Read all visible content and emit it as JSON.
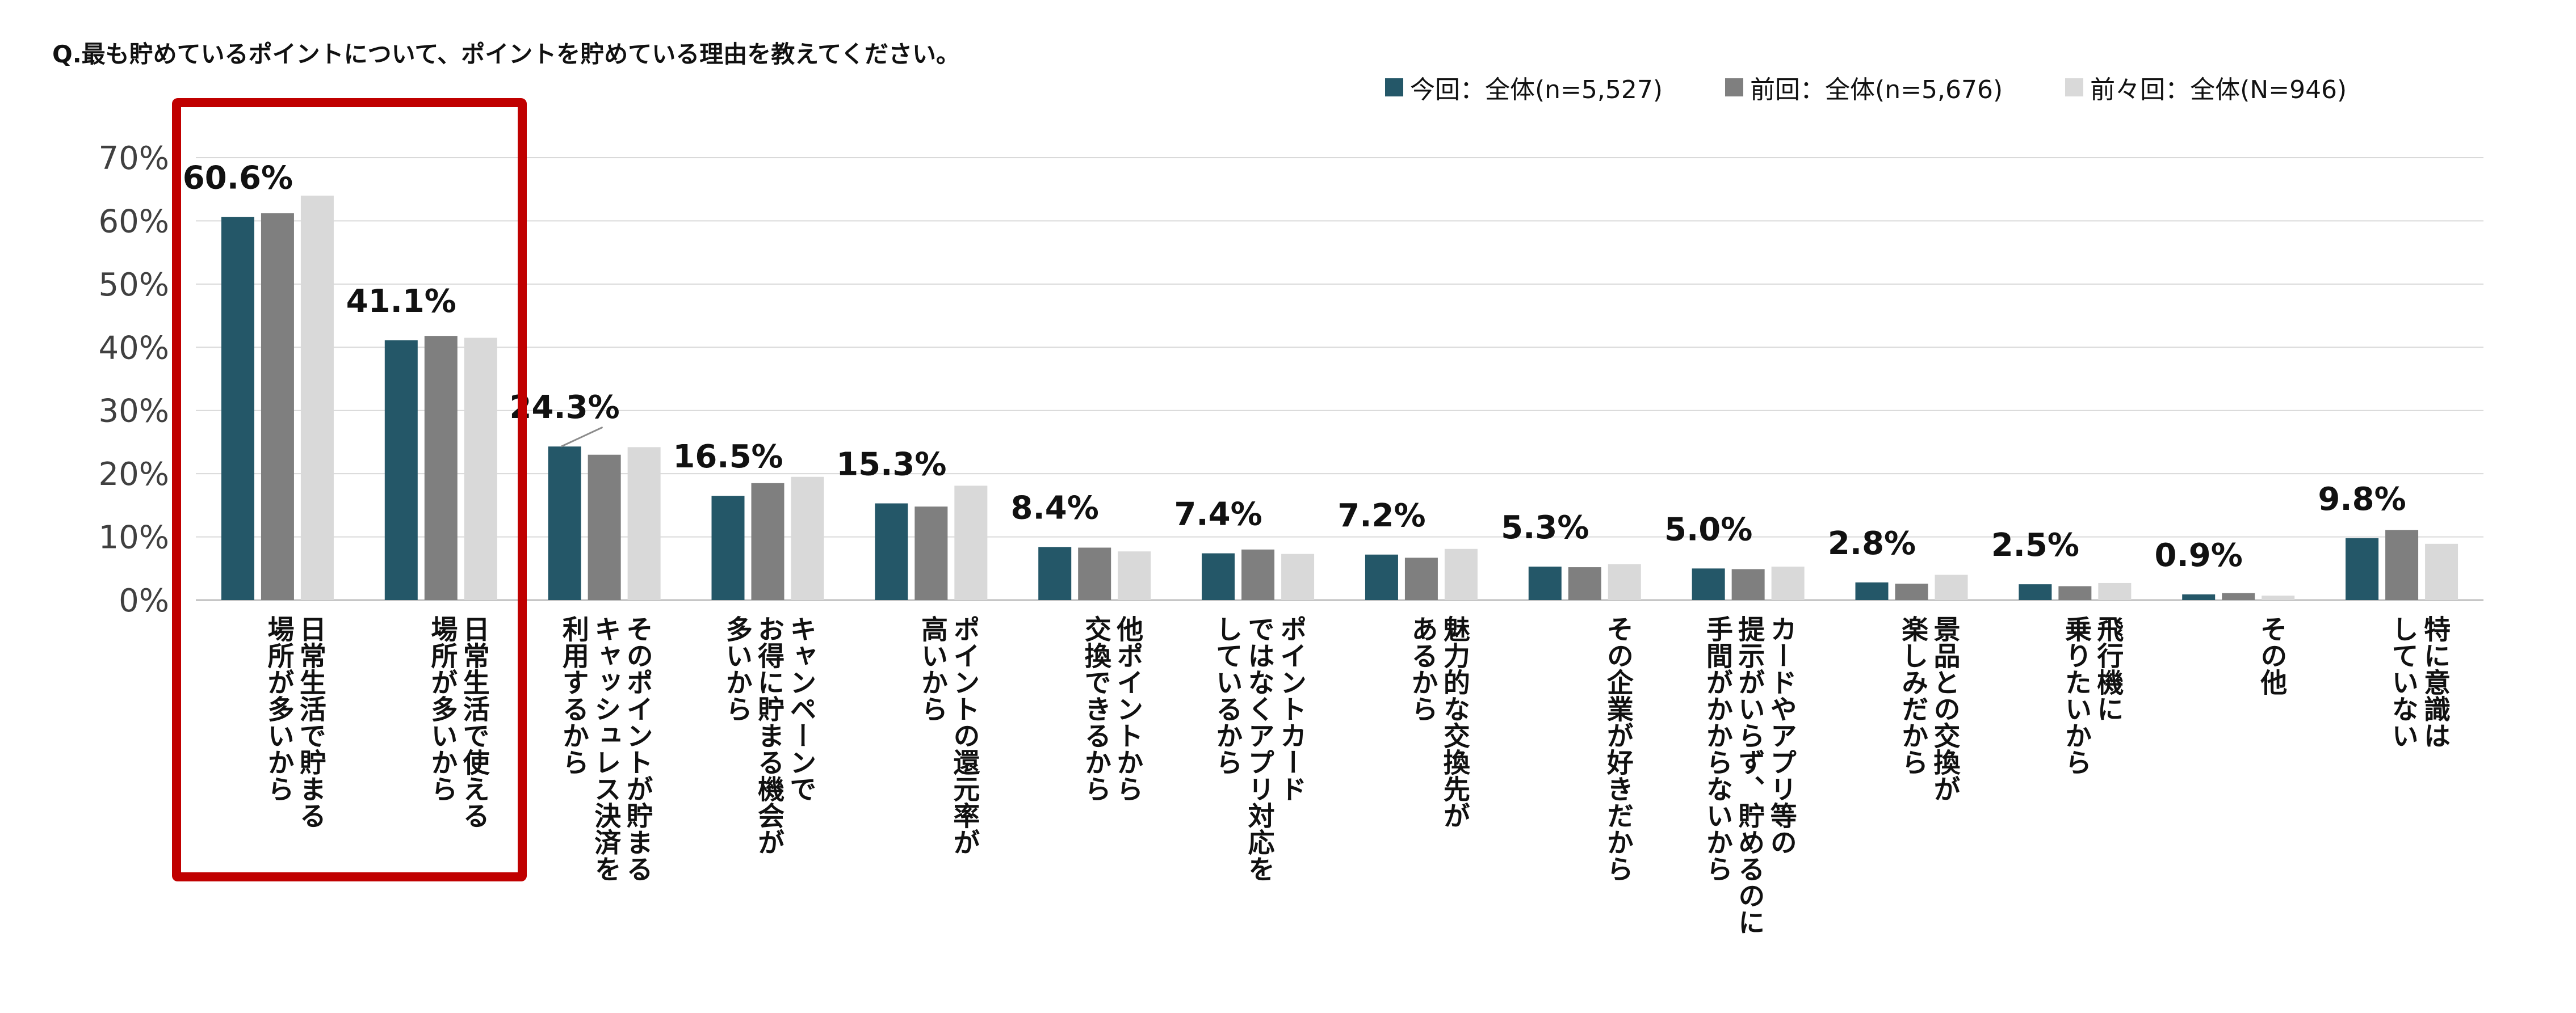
{
  "title": "Q.最も貯めているポイントについて、ポイントを貯めている理由を教えてください。",
  "colors": {
    "current": "#245768",
    "previous": "#7f7f7f",
    "before_previous": "#d9d9d9",
    "highlight": "#c00000"
  },
  "chart_data": {
    "type": "bar",
    "ylim": [
      0,
      70
    ],
    "yticks": [
      "0%",
      "10%",
      "20%",
      "30%",
      "40%",
      "50%",
      "60%",
      "70%"
    ],
    "grid": true,
    "legend": "top-right",
    "categories": [
      "日常生活で貯まる\n場所が多いから",
      "日常生活で使える\n場所が多いから",
      "そのポイントが貯まる\nキャッシュレス決済を\n利用するから",
      "キャンペーンで\nお得に貯まる機会が\n多いから",
      "ポイントの還元率が\n高いから",
      "他ポイントから\n交換できるから",
      "ポイントカード\nではなくアプリ対応を\nしているから",
      "魅力的な交換先が\nあるから",
      "その企業が好きだから",
      "カードやアプリ等の\n提示がいらず、貯めるのに\n手間がかからないから",
      "景品との交換が\n楽しみだから",
      "飛行機に\n乗りたいから",
      "その他",
      "特に意識は\nしていない"
    ],
    "series": [
      {
        "name": "今回：全体(n=5,527)",
        "values": [
          60.6,
          41.1,
          24.3,
          16.5,
          15.3,
          8.4,
          7.4,
          7.2,
          5.3,
          5.0,
          2.8,
          2.5,
          0.9,
          9.8
        ]
      },
      {
        "name": "前回：全体(n=5,676)",
        "values": [
          61.2,
          41.8,
          23.0,
          18.5,
          14.8,
          8.3,
          8.0,
          6.7,
          5.2,
          4.9,
          2.6,
          2.2,
          1.1,
          11.1
        ]
      },
      {
        "name": "前々回：全体(N=946)",
        "values": [
          64.0,
          41.5,
          24.2,
          19.5,
          18.1,
          7.7,
          7.3,
          8.1,
          5.7,
          5.3,
          4.0,
          2.7,
          0.7,
          8.9
        ]
      }
    ],
    "data_labels": [
      "60.6%",
      "41.1%",
      "24.3%",
      "16.5%",
      "15.3%",
      "8.4%",
      "7.4%",
      "7.2%",
      "5.3%",
      "5.0%",
      "2.8%",
      "2.5%",
      "0.9%",
      "9.8%"
    ]
  }
}
